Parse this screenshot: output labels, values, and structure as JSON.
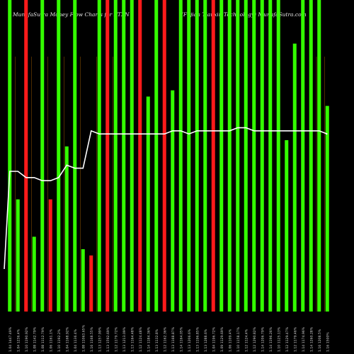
{
  "header": {
    "title": "MunafaSutra Money Flow Charts for FTXN",
    "credit": "(Fujian Tianxin Technology) MunafaSutra.com"
  },
  "colors": {
    "background": "#000000",
    "up_bar": "#33ff00",
    "down_bar": "#ff1a1a",
    "line": "#ffffff",
    "guide": "#b86b00",
    "label": "#d0d0d0"
  },
  "chart_data": {
    "type": "bar",
    "ylim": [
      0,
      100
    ],
    "categories": [
      "1.04 1447.49%",
      "1.04 1236.4%",
      "1.10 1190.92%",
      "1.08 1142.79%",
      "1.08 1112.79%",
      "1.06 1161.1%",
      "1.10 1192.2%",
      "1.04 1168.92%",
      "1.04 1136.4%",
      "1.08 11063.65%",
      "1.16 1168.55%",
      "1.13 1257.99%",
      "1.13 1592.69%",
      "1.12 1179.72%",
      "1.13 1213.09%",
      "1.13 1164.48%",
      "1.12 1124.48%",
      "1.14 1184.36%",
      "1.13 1132.8%",
      "1.12 1162.36%",
      "1.13 1168.87%",
      "1.14 1164.05%",
      "1.13 1206.6%",
      "1.13 1196.85%",
      "1.13 1288.6%",
      "1.04 1196.72%",
      "1.09 1129.69%",
      "1.06 1109.4%",
      "1.10 1158.17%",
      "1.12 1124.4%",
      "1.12 1290.82%",
      "1.14 1206.79%",
      "1.14 1196.26%",
      "1.10 1125.13%",
      "1.12 1129.47%",
      "1.12 1179.46%",
      "1.14 1174.96%",
      "1.14 1260.28%",
      "1.16 1208.5%",
      "1.16 1500%"
    ],
    "series": [
      {
        "kind": "bars",
        "values": [
          100,
          36,
          100,
          24,
          100,
          36,
          100,
          53,
          100,
          20,
          18,
          100,
          100,
          100,
          100,
          100,
          100,
          69,
          100,
          100,
          71,
          100,
          100,
          100,
          100,
          100,
          100,
          100,
          100,
          100,
          100,
          100,
          100,
          100,
          55,
          86,
          100,
          100,
          100,
          66
        ],
        "directions": [
          "up",
          "up",
          "down",
          "up",
          "up",
          "down",
          "up",
          "up",
          "up",
          "up",
          "down",
          "up",
          "down",
          "up",
          "up",
          "up",
          "down",
          "up",
          "up",
          "down",
          "up",
          "up",
          "up",
          "up",
          "up",
          "down",
          "up",
          "up",
          "up",
          "up",
          "up",
          "up",
          "up",
          "up",
          "up",
          "up",
          "up",
          "up",
          "up",
          "up"
        ]
      },
      {
        "kind": "line",
        "values": [
          45,
          45,
          43,
          43,
          42,
          42,
          43,
          47,
          46,
          46,
          58,
          57,
          57,
          57,
          57,
          57,
          57,
          57,
          57,
          57,
          58,
          58,
          57,
          58,
          58,
          58,
          58,
          58,
          59,
          59,
          58,
          58,
          58,
          58,
          58,
          58,
          58,
          58,
          58,
          57
        ]
      }
    ]
  }
}
